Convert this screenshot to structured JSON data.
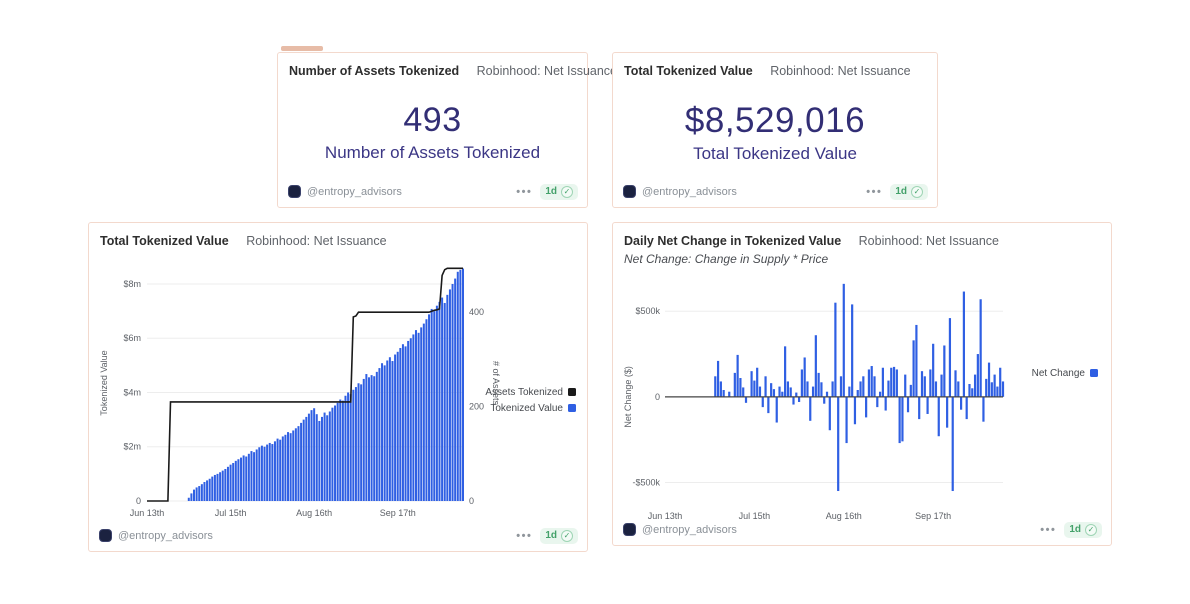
{
  "colors": {
    "bar_blue": "#2f5fe3",
    "line_black": "#1a1a1a",
    "kpi_indigo": "#322e75",
    "panel_border": "#f3d9cd",
    "badge_green": "#43a169",
    "grid": "#ededed",
    "axis_text": "#5d6167",
    "zero_line": "#444444"
  },
  "footer": {
    "handle": "@entropy_advisors",
    "menu": "•••",
    "age": "1d",
    "check": "✓"
  },
  "kpi_panels": [
    {
      "title": "Number of Assets Tokenized",
      "source": "Robinhood: Net Issuance",
      "value": "493",
      "label": "Number of Assets Tokenized"
    },
    {
      "title": "Total Tokenized Value",
      "source": "Robinhood: Net Issuance",
      "value": "$8,529,016",
      "label": "Total Tokenized Value"
    }
  ],
  "chart_data": [
    {
      "type": "bar+line",
      "title": "Total Tokenized Value",
      "source": "Robinhood: Net Issuance",
      "num_days": 122,
      "x_ticks": [
        {
          "label": "Jun 13th",
          "day": 0
        },
        {
          "label": "Jul 15th",
          "day": 32
        },
        {
          "label": "Aug 16th",
          "day": 64
        },
        {
          "label": "Sep 17th",
          "day": 96
        }
      ],
      "y_left": {
        "label": "Tokenized Value",
        "unit": "USD millions",
        "axis_max": 8.7,
        "ticks": [
          {
            "label": "$8m",
            "value": 8
          },
          {
            "label": "$6m",
            "value": 6
          },
          {
            "label": "$4m",
            "value": 4
          },
          {
            "label": "$2m",
            "value": 2
          },
          {
            "label": "0",
            "value": 0
          }
        ]
      },
      "y_right": {
        "label": "# of Assets",
        "axis_max": 500,
        "ticks": [
          {
            "label": "400",
            "value": 400
          },
          {
            "label": "200",
            "value": 200
          },
          {
            "label": "0",
            "value": 0
          }
        ]
      },
      "legend": [
        {
          "label": "Assets Tokenized",
          "color": "#1a1a1a"
        },
        {
          "label": "Tokenized Value",
          "color": "#2f5fe3"
        }
      ],
      "bars": {
        "name": "Tokenized Value",
        "axis": "left",
        "color": "#2f5fe3",
        "start_day": 16,
        "values": [
          0.12,
          0.28,
          0.42,
          0.5,
          0.55,
          0.62,
          0.7,
          0.76,
          0.82,
          0.9,
          0.96,
          1.0,
          1.06,
          1.12,
          1.18,
          1.26,
          1.34,
          1.4,
          1.48,
          1.54,
          1.6,
          1.68,
          1.64,
          1.74,
          1.84,
          1.8,
          1.9,
          1.98,
          2.04,
          2.0,
          2.08,
          2.14,
          2.1,
          2.2,
          2.3,
          2.26,
          2.38,
          2.44,
          2.54,
          2.5,
          2.6,
          2.68,
          2.76,
          2.88,
          3.0,
          3.1,
          3.22,
          3.35,
          3.42,
          3.2,
          2.95,
          3.1,
          3.26,
          3.16,
          3.3,
          3.44,
          3.52,
          3.62,
          3.74,
          3.7,
          3.88,
          4.0,
          3.94,
          4.1,
          4.2,
          4.34,
          4.3,
          4.5,
          4.68,
          4.56,
          4.64,
          4.6,
          4.76,
          4.9,
          5.08,
          5.0,
          5.18,
          5.3,
          5.16,
          5.4,
          5.5,
          5.64,
          5.78,
          5.7,
          5.9,
          6.0,
          6.14,
          6.3,
          6.2,
          6.4,
          6.54,
          6.7,
          6.88,
          7.08,
          7.0,
          7.2,
          7.34,
          7.5,
          7.3,
          7.6,
          7.8,
          8.0,
          8.2,
          8.45,
          8.52,
          8.57
        ]
      },
      "line": {
        "name": "Assets Tokenized",
        "axis": "right",
        "color": "#1a1a1a",
        "steps": [
          {
            "start_day": 0,
            "end_day": 8,
            "value": 0
          },
          {
            "start_day": 9,
            "end_day": 78,
            "value": 210
          },
          {
            "start_day": 79,
            "end_day": 79,
            "value": 390
          },
          {
            "start_day": 80,
            "end_day": 80,
            "value": 392
          },
          {
            "start_day": 81,
            "end_day": 108,
            "value": 400
          },
          {
            "start_day": 109,
            "end_day": 109,
            "value": 402
          },
          {
            "start_day": 110,
            "end_day": 110,
            "value": 404
          },
          {
            "start_day": 111,
            "end_day": 111,
            "value": 405
          },
          {
            "start_day": 112,
            "end_day": 112,
            "value": 407
          },
          {
            "start_day": 113,
            "end_day": 113,
            "value": 478
          },
          {
            "start_day": 114,
            "end_day": 114,
            "value": 490
          },
          {
            "start_day": 115,
            "end_day": 121,
            "value": 493
          }
        ]
      }
    },
    {
      "type": "bar",
      "title": "Daily Net Change in Tokenized Value",
      "source": "Robinhood: Net Issuance",
      "subtitle": "Net Change: Change in Supply * Price",
      "num_days": 122,
      "x_ticks": [
        {
          "label": "Jun 13th",
          "day": 0
        },
        {
          "label": "Jul 15th",
          "day": 32
        },
        {
          "label": "Aug 16th",
          "day": 64
        },
        {
          "label": "Sep 17th",
          "day": 96
        }
      ],
      "y": {
        "label": "Net Change ($)",
        "unit": "USD thousands",
        "axis_max": 700,
        "axis_min": -620,
        "ticks": [
          {
            "label": "$500k",
            "value": 500
          },
          {
            "label": "0",
            "value": 0
          },
          {
            "label": "-$500k",
            "value": -500
          }
        ]
      },
      "legend": [
        {
          "label": "Net Change",
          "color": "#2f5fe3"
        }
      ],
      "bars": {
        "name": "Net Change",
        "color": "#2f5fe3",
        "start_day": 18,
        "values": [
          120,
          210,
          90,
          40,
          0,
          30,
          0,
          140,
          245,
          110,
          55,
          -35,
          0,
          150,
          95,
          170,
          60,
          -60,
          120,
          -95,
          80,
          45,
          -150,
          60,
          30,
          295,
          90,
          55,
          -45,
          25,
          -30,
          160,
          230,
          90,
          -140,
          60,
          360,
          140,
          85,
          -40,
          30,
          -195,
          90,
          550,
          -550,
          120,
          660,
          -270,
          60,
          540,
          -160,
          40,
          90,
          120,
          -120,
          160,
          180,
          120,
          -60,
          30,
          170,
          -80,
          95,
          170,
          175,
          160,
          -270,
          -260,
          130,
          -90,
          70,
          330,
          420,
          -130,
          150,
          120,
          -100,
          160,
          310,
          90,
          -230,
          130,
          300,
          -180,
          460,
          -550,
          155,
          90,
          -75,
          615,
          -130,
          75,
          50,
          130,
          250,
          570,
          -145,
          105,
          200,
          85,
          130,
          60,
          170,
          90
        ]
      }
    }
  ]
}
